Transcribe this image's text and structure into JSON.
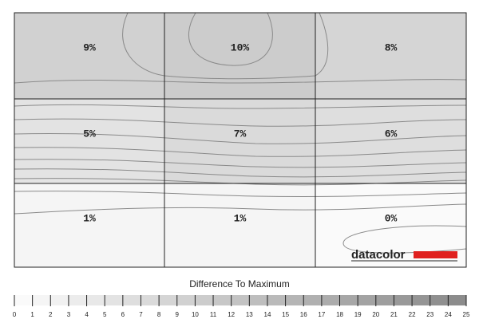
{
  "chart_data": {
    "type": "heatmap",
    "values": [
      [
        9,
        10,
        8
      ],
      [
        5,
        7,
        6
      ],
      [
        1,
        1,
        0
      ]
    ],
    "value_labels": [
      [
        "9%",
        "10%",
        "8%"
      ],
      [
        "5%",
        "7%",
        "6%"
      ],
      [
        "1%",
        "1%",
        "0%"
      ]
    ],
    "logo": "datacolor",
    "scale_title": "Difference To Maximum",
    "scale_lim": [
      0,
      25
    ],
    "scale_ticks": [
      0,
      1,
      2,
      3,
      4,
      5,
      6,
      7,
      8,
      9,
      10,
      11,
      12,
      13,
      14,
      15,
      16,
      17,
      18,
      19,
      20,
      21,
      22,
      23,
      24,
      25
    ]
  }
}
